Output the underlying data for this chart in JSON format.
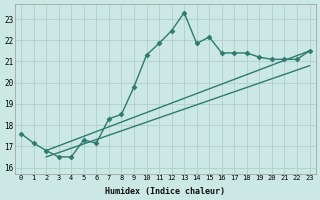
{
  "xlabel": "Humidex (Indice chaleur)",
  "ylabel": "",
  "bg_color": "#cce8e5",
  "line_color": "#2d7b6f",
  "grid_color": "#b0d0cc",
  "xlim": [
    -0.5,
    23.5
  ],
  "ylim": [
    15.7,
    23.7
  ],
  "xticks": [
    0,
    1,
    2,
    3,
    4,
    5,
    6,
    7,
    8,
    9,
    10,
    11,
    12,
    13,
    14,
    15,
    16,
    17,
    18,
    19,
    20,
    21,
    22,
    23
  ],
  "yticks": [
    16,
    17,
    18,
    19,
    20,
    21,
    22,
    23
  ],
  "lines": [
    {
      "x": [
        0,
        1,
        2,
        3,
        4,
        5,
        6,
        7,
        8,
        9,
        10,
        11,
        12,
        13,
        14,
        15,
        16,
        17,
        18,
        19,
        20,
        21,
        22,
        23
      ],
      "y": [
        17.6,
        17.15,
        16.8,
        16.5,
        16.5,
        17.3,
        17.15,
        18.3,
        18.5,
        19.8,
        21.3,
        21.85,
        22.45,
        23.3,
        21.85,
        22.15,
        21.4,
        21.4,
        21.4,
        21.2,
        21.1,
        21.1,
        21.1,
        21.5
      ],
      "marker": "D",
      "markersize": 2.5,
      "linewidth": 1.0
    },
    {
      "x": [
        2,
        23
      ],
      "y": [
        16.8,
        21.5
      ],
      "marker": "none",
      "markersize": 0,
      "linewidth": 1.0
    },
    {
      "x": [
        2,
        23
      ],
      "y": [
        16.5,
        20.8
      ],
      "marker": "none",
      "markersize": 0,
      "linewidth": 1.0
    }
  ]
}
